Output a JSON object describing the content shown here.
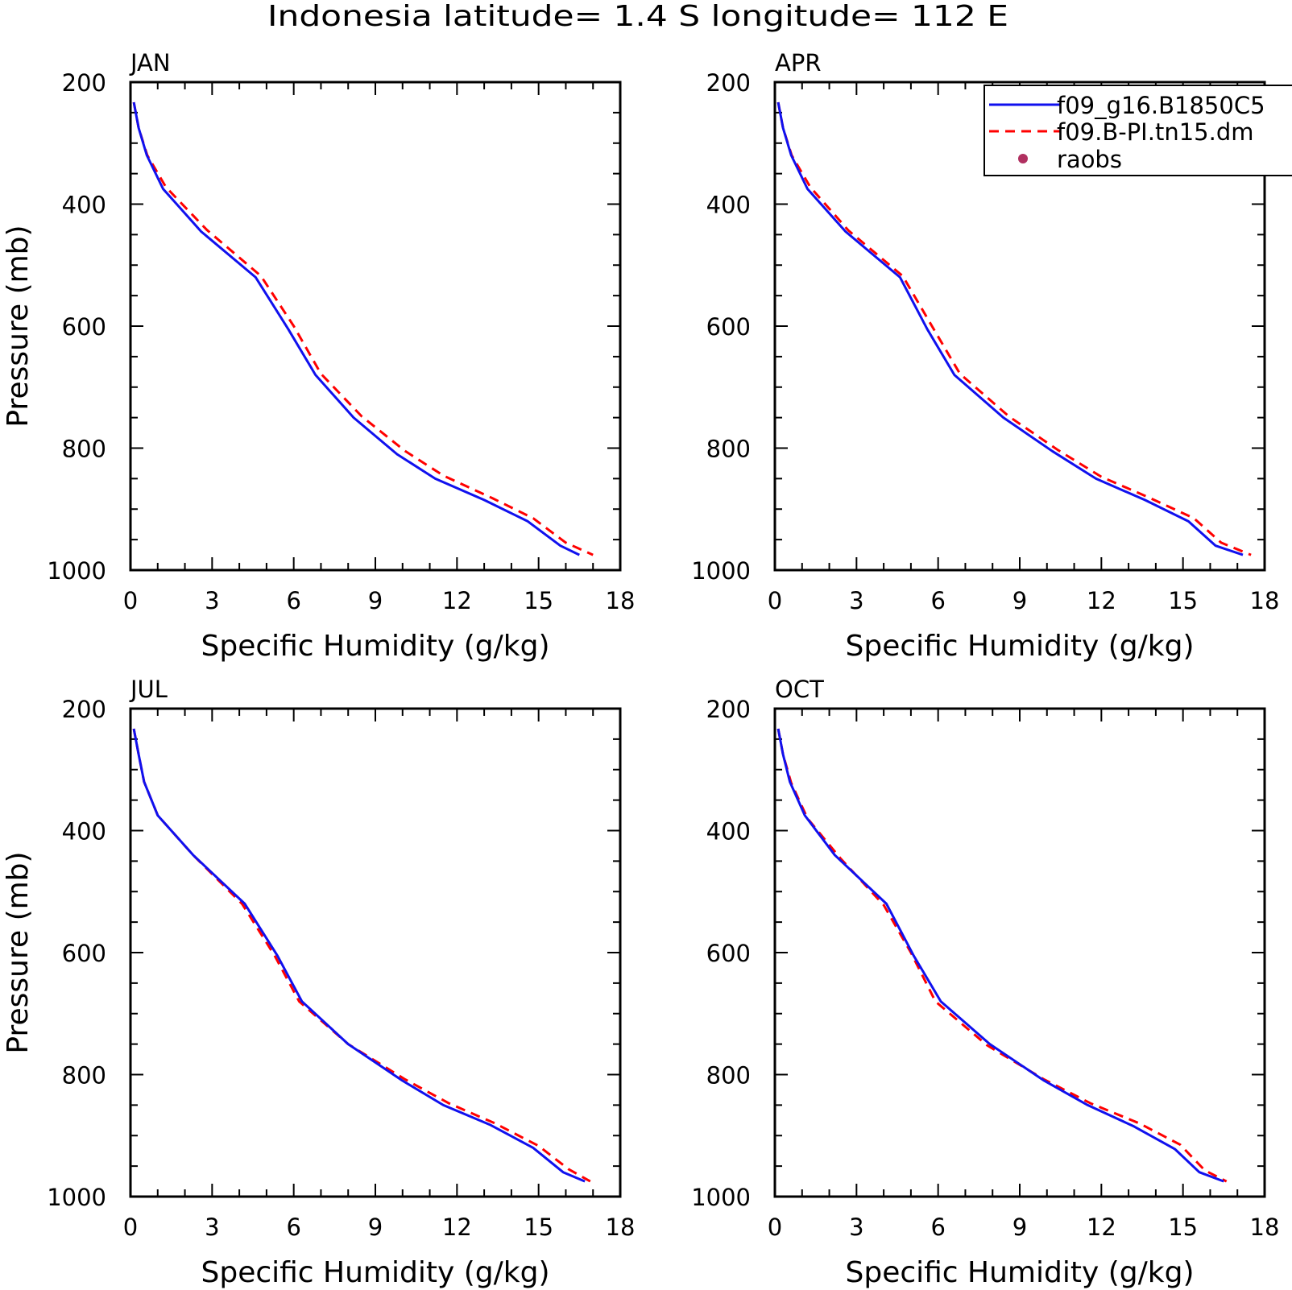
{
  "title": "Indonesia  latitude= 1.4 S longitude= 112 E",
  "legend": {
    "entries": [
      {
        "label": "f09_g16.B1850C5",
        "style": "solid",
        "color": "#0000ff"
      },
      {
        "label": "f09.B-PI.tn15.dm",
        "style": "dashed",
        "color": "#ff0000"
      },
      {
        "label": "raobs",
        "style": "dot",
        "color": "#b03060"
      }
    ],
    "placement": "top-right of APR panel"
  },
  "chart_data": [
    {
      "type": "line",
      "panel_label": "JAN",
      "xlabel": "Specific Humidity (g/kg)",
      "ylabel": "Pressure (mb)",
      "xlim": [
        0,
        18
      ],
      "ylim": [
        200,
        1000
      ],
      "y_inverted": true,
      "xticks": [
        "0",
        "3",
        "6",
        "9",
        "12",
        "15",
        "18"
      ],
      "yticks": [
        "200",
        "400",
        "600",
        "800",
        "1000"
      ],
      "series": [
        {
          "name": "f09_g16.B1850C5",
          "x": [
            0.12,
            0.3,
            0.6,
            1.2,
            2.6,
            4.6,
            5.8,
            6.8,
            8.2,
            9.8,
            11.2,
            13.0,
            14.6,
            15.8,
            16.5
          ],
          "y": [
            233,
            275,
            320,
            375,
            445,
            520,
            605,
            680,
            750,
            810,
            850,
            885,
            920,
            960,
            975
          ]
        },
        {
          "name": "f09.B-PI.tn15.dm",
          "x": [
            0.12,
            0.3,
            0.62,
            1.3,
            2.8,
            4.8,
            6.0,
            7.0,
            8.5,
            10.1,
            11.5,
            13.3,
            14.8,
            16.0,
            17.0
          ],
          "y": [
            233,
            275,
            320,
            372,
            442,
            518,
            600,
            678,
            748,
            805,
            845,
            882,
            915,
            955,
            975
          ]
        }
      ]
    },
    {
      "type": "line",
      "panel_label": "APR",
      "xlabel": "Specific Humidity (g/kg)",
      "ylabel": "",
      "xlim": [
        0,
        18
      ],
      "ylim": [
        200,
        1000
      ],
      "y_inverted": true,
      "xticks": [
        "0",
        "3",
        "6",
        "9",
        "12",
        "15",
        "18"
      ],
      "yticks": [
        "200",
        "400",
        "600",
        "800",
        "1000"
      ],
      "series": [
        {
          "name": "f09_g16.B1850C5",
          "x": [
            0.12,
            0.3,
            0.6,
            1.2,
            2.6,
            4.6,
            5.6,
            6.6,
            8.4,
            10.2,
            11.8,
            13.6,
            15.2,
            16.2,
            17.2
          ],
          "y": [
            233,
            275,
            320,
            375,
            445,
            520,
            605,
            680,
            750,
            805,
            850,
            885,
            920,
            960,
            975
          ]
        },
        {
          "name": "f09.B-PI.tn15.dm",
          "x": [
            0.12,
            0.3,
            0.62,
            1.3,
            2.7,
            4.7,
            5.8,
            6.8,
            8.6,
            10.4,
            12.0,
            13.8,
            15.4,
            16.4,
            17.5
          ],
          "y": [
            233,
            275,
            320,
            372,
            443,
            518,
            602,
            678,
            748,
            803,
            847,
            882,
            915,
            955,
            975
          ]
        }
      ]
    },
    {
      "type": "line",
      "panel_label": "JUL",
      "xlabel": "Specific Humidity (g/kg)",
      "ylabel": "Pressure (mb)",
      "xlim": [
        0,
        18
      ],
      "ylim": [
        200,
        1000
      ],
      "y_inverted": true,
      "xticks": [
        "0",
        "3",
        "6",
        "9",
        "12",
        "15",
        "18"
      ],
      "yticks": [
        "200",
        "400",
        "600",
        "800",
        "1000"
      ],
      "series": [
        {
          "name": "f09_g16.B1850C5",
          "x": [
            0.12,
            0.3,
            0.5,
            1.0,
            2.3,
            4.2,
            5.4,
            6.3,
            8.0,
            10.0,
            11.5,
            13.2,
            14.8,
            15.9,
            16.7
          ],
          "y": [
            233,
            275,
            320,
            375,
            440,
            520,
            605,
            680,
            750,
            810,
            850,
            882,
            920,
            960,
            975
          ]
        },
        {
          "name": "f09.B-PI.tn15.dm",
          "x": [
            0.12,
            0.3,
            0.5,
            1.0,
            2.3,
            4.1,
            5.3,
            6.2,
            8.0,
            10.1,
            11.7,
            13.4,
            15.0,
            16.1,
            16.9
          ],
          "y": [
            233,
            275,
            320,
            375,
            440,
            520,
            605,
            680,
            750,
            808,
            847,
            880,
            917,
            955,
            975
          ]
        }
      ]
    },
    {
      "type": "line",
      "panel_label": "OCT",
      "xlabel": "Specific Humidity (g/kg)",
      "ylabel": "",
      "xlim": [
        0,
        18
      ],
      "ylim": [
        200,
        1000
      ],
      "y_inverted": true,
      "xticks": [
        "0",
        "3",
        "6",
        "9",
        "12",
        "15",
        "18"
      ],
      "yticks": [
        "200",
        "400",
        "600",
        "800",
        "1000"
      ],
      "series": [
        {
          "name": "f09_g16.B1850C5",
          "x": [
            0.12,
            0.3,
            0.55,
            1.1,
            2.2,
            4.1,
            5.1,
            6.1,
            7.9,
            9.9,
            11.5,
            13.2,
            14.7,
            15.6,
            16.5
          ],
          "y": [
            233,
            275,
            320,
            375,
            440,
            520,
            605,
            680,
            750,
            810,
            850,
            885,
            922,
            960,
            975
          ]
        },
        {
          "name": "f09.B-PI.tn15.dm",
          "x": [
            0.12,
            0.3,
            0.6,
            1.2,
            2.4,
            4.0,
            5.0,
            5.9,
            7.8,
            9.9,
            11.6,
            13.4,
            14.9,
            15.8,
            16.6
          ],
          "y": [
            233,
            275,
            322,
            380,
            445,
            522,
            600,
            680,
            752,
            808,
            847,
            880,
            915,
            957,
            975
          ]
        }
      ]
    }
  ]
}
